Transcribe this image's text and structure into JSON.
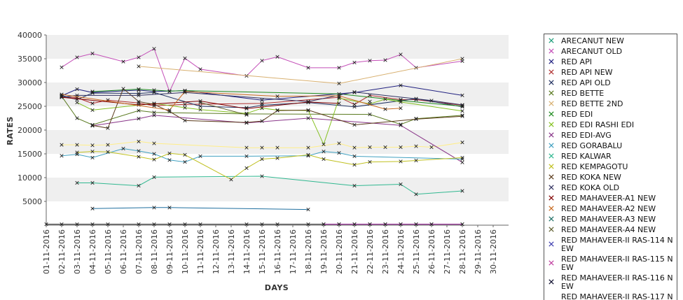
{
  "chart_data": {
    "type": "line",
    "title": "",
    "xlabel": "DAYS",
    "ylabel": "RATES",
    "ylim": [
      0,
      40000
    ],
    "yticks": [
      5000,
      10000,
      15000,
      20000,
      25000,
      30000,
      35000,
      40000
    ],
    "categories": [
      "01-11-2016",
      "02-11-2016",
      "03-11-2016",
      "04-11-2016",
      "05-11-2016",
      "06-11-2016",
      "07-11-2016",
      "08-11-2016",
      "09-11-2016",
      "10-11-2016",
      "11-11-2016",
      "12-11-2016",
      "13-11-2016",
      "14-11-2016",
      "15-11-2016",
      "16-11-2016",
      "17-11-2016",
      "18-11-2016",
      "19-11-2016",
      "20-11-2016",
      "21-11-2016",
      "22-11-2016",
      "23-11-2016",
      "24-11-2016",
      "25-11-2016",
      "26-11-2016",
      "27-11-2016",
      "28-11-2016",
      "29-11-2016",
      "30-11-2016"
    ],
    "grid": "horizontal bands",
    "legend_position": "right",
    "series": [
      {
        "name": "ARECANUT NEW",
        "color": "#1e9e7a",
        "values": [
          null,
          null,
          null,
          null,
          null,
          null,
          null,
          null,
          null,
          null,
          null,
          null,
          null,
          null,
          null,
          null,
          null,
          null,
          null,
          null,
          null,
          null,
          null,
          null,
          null,
          null,
          null,
          null,
          null,
          null
        ]
      },
      {
        "name": "ARECANUT OLD",
        "color": "#c44fb8",
        "values": [
          null,
          33200,
          35300,
          36100,
          null,
          34400,
          35300,
          37100,
          28100,
          35100,
          32800,
          null,
          null,
          31400,
          34600,
          35400,
          null,
          33100,
          null,
          33100,
          34200,
          34600,
          34700,
          35900,
          33100,
          null,
          null,
          34500,
          null,
          null
        ]
      },
      {
        "name": "RED API",
        "color": "#202080",
        "values": [
          null,
          27200,
          28600,
          27900,
          null,
          null,
          28400,
          28100,
          null,
          28300,
          null,
          null,
          null,
          null,
          26300,
          null,
          null,
          null,
          null,
          null,
          27900,
          null,
          null,
          29400,
          null,
          null,
          null,
          27300,
          null,
          null
        ]
      },
      {
        "name": "RED API NEW",
        "color": "#b03030",
        "values": [
          null,
          27000,
          26800,
          25600,
          26300,
          null,
          25700,
          25100,
          null,
          25400,
          null,
          null,
          null,
          null,
          25600,
          null,
          null,
          null,
          null,
          26900,
          25400,
          27300,
          null,
          26400,
          26400,
          null,
          null,
          25200,
          null,
          null
        ]
      },
      {
        "name": "RED API OLD",
        "color": "#203060",
        "values": [
          null,
          27300,
          26400,
          27800,
          null,
          null,
          27700,
          27900,
          null,
          null,
          25000,
          null,
          null,
          24700,
          25200,
          null,
          null,
          25800,
          null,
          null,
          24900,
          null,
          null,
          null,
          26600,
          null,
          null,
          24900,
          null,
          null
        ]
      },
      {
        "name": "RED BETTE",
        "color": "#5a7a20",
        "values": [
          null,
          27100,
          22500,
          21100,
          null,
          null,
          24100,
          23700,
          null,
          null,
          null,
          null,
          null,
          23400,
          null,
          null,
          null,
          null,
          null,
          null,
          null,
          23300,
          null,
          21200,
          22400,
          null,
          null,
          23100,
          null,
          null
        ]
      },
      {
        "name": "RED BETTE 2ND",
        "color": "#d8b070",
        "values": [
          null,
          null,
          null,
          null,
          null,
          null,
          33400,
          null,
          null,
          null,
          null,
          null,
          null,
          null,
          null,
          null,
          null,
          null,
          null,
          29800,
          null,
          null,
          null,
          null,
          null,
          null,
          null,
          35000,
          null,
          null
        ]
      },
      {
        "name": "RED EDI",
        "color": "#1e8a1e",
        "values": [
          null,
          null,
          null,
          28100,
          null,
          null,
          28600,
          28400,
          28200,
          28300,
          null,
          null,
          null,
          null,
          null,
          null,
          null,
          null,
          null,
          27600,
          null,
          null,
          null,
          26200,
          null,
          null,
          null,
          25000,
          null,
          null
        ]
      },
      {
        "name": "RED EDI RASHI EDI",
        "color": "#84c020",
        "values": [
          null,
          null,
          25800,
          24200,
          null,
          null,
          null,
          25600,
          null,
          24700,
          24300,
          null,
          null,
          23500,
          24600,
          24200,
          null,
          24100,
          17000,
          26700,
          null,
          25500,
          26500,
          25900,
          null,
          null,
          null,
          24000,
          null,
          null
        ]
      },
      {
        "name": "RED EDI-AVG",
        "color": "#883488",
        "values": [
          null,
          null,
          null,
          20900,
          null,
          null,
          22400,
          23100,
          null,
          null,
          null,
          null,
          null,
          21500,
          null,
          null,
          null,
          22500,
          null,
          null,
          null,
          null,
          null,
          21000,
          null,
          null,
          null,
          13200,
          null,
          null
        ]
      },
      {
        "name": "RED GORABALU",
        "color": "#40a0c0",
        "values": [
          null,
          14600,
          14900,
          14200,
          null,
          16100,
          15600,
          15000,
          13700,
          13300,
          14500,
          null,
          null,
          14500,
          null,
          null,
          null,
          14600,
          15500,
          15200,
          14500,
          null,
          null,
          null,
          null,
          null,
          null,
          13900,
          null,
          null
        ]
      },
      {
        "name": "RED KALWAR",
        "color": "#30b890",
        "values": [
          null,
          null,
          8900,
          8900,
          null,
          null,
          8300,
          10100,
          null,
          null,
          null,
          null,
          null,
          null,
          10300,
          null,
          null,
          null,
          null,
          null,
          8300,
          null,
          null,
          8600,
          6500,
          null,
          null,
          7200,
          null,
          null
        ]
      },
      {
        "name": "RED KEMPAGOTU",
        "color": "#c0c020",
        "values": [
          null,
          null,
          15300,
          15500,
          15400,
          null,
          14400,
          13800,
          15100,
          14800,
          null,
          null,
          9600,
          12000,
          13900,
          14100,
          null,
          14800,
          13900,
          null,
          12700,
          13300,
          null,
          13400,
          13600,
          null,
          null,
          14200,
          null,
          null
        ]
      },
      {
        "name": "RED KOKA NEW",
        "color": "#5a3a1a",
        "values": [
          null,
          null,
          null,
          21000,
          20400,
          28700,
          26000,
          25400,
          23900,
          22000,
          null,
          null,
          null,
          21600,
          21900,
          24100,
          null,
          24200,
          null,
          null,
          21100,
          null,
          null,
          null,
          22300,
          null,
          null,
          22900,
          null,
          null
        ]
      },
      {
        "name": "RED KOKA OLD",
        "color": "#303060",
        "values": [
          null,
          26900,
          27300,
          null,
          null,
          null,
          27300,
          null,
          null,
          27900,
          null,
          null,
          null,
          null,
          null,
          null,
          null,
          26000,
          null,
          null,
          28000,
          null,
          null,
          null,
          null,
          26200,
          null,
          25300,
          null,
          null
        ]
      },
      {
        "name": "RED MAHAVEER-A1 NEW",
        "color": "#800000",
        "values": [
          null,
          26900,
          null,
          null,
          null,
          null,
          25300,
          null,
          null,
          null,
          26100,
          null,
          null,
          24500,
          null,
          null,
          null,
          25900,
          null,
          25600,
          null,
          null,
          null,
          null,
          null,
          null,
          null,
          null,
          null,
          null
        ]
      },
      {
        "name": "RED MAHAVEER-A2 NEW",
        "color": "#c86a20",
        "values": [
          null,
          27500,
          null,
          null,
          null,
          null,
          null,
          null,
          24200,
          28100,
          null,
          null,
          null,
          null,
          null,
          27100,
          null,
          null,
          null,
          27200,
          null,
          null,
          24400,
          24600,
          null,
          null,
          null,
          null,
          null,
          null
        ]
      },
      {
        "name": "RED MAHAVEER-A3 NEW",
        "color": "#207068",
        "values": [
          null,
          null,
          null,
          null,
          null,
          null,
          null,
          null,
          null,
          null,
          null,
          null,
          null,
          null,
          null,
          null,
          null,
          null,
          null,
          null,
          null,
          26000,
          null,
          null,
          null,
          null,
          null,
          null,
          null,
          null
        ]
      },
      {
        "name": "RED MAHAVEER-A4 NEW",
        "color": "#606030",
        "values": [
          null,
          null,
          null,
          null,
          null,
          null,
          null,
          null,
          null,
          null,
          25800,
          null,
          null,
          23200,
          null,
          null,
          null,
          null,
          null,
          null,
          null,
          null,
          null,
          null,
          null,
          null,
          null,
          null,
          null,
          null
        ]
      },
      {
        "name": "RED MAHAVEER-II RAS-114 NEW",
        "color": "#4040b0",
        "values": [
          null,
          null,
          null,
          null,
          null,
          null,
          null,
          null,
          null,
          null,
          null,
          null,
          null,
          null,
          null,
          null,
          null,
          null,
          null,
          null,
          null,
          null,
          null,
          null,
          null,
          null,
          null,
          null,
          null,
          null
        ]
      },
      {
        "name": "RED MAHAVEER-II RAS-115 NEW",
        "color": "#c040a0",
        "values": [
          null,
          null,
          null,
          null,
          null,
          null,
          null,
          null,
          null,
          null,
          null,
          null,
          null,
          null,
          null,
          null,
          null,
          null,
          null,
          null,
          null,
          null,
          null,
          null,
          null,
          null,
          null,
          null,
          null,
          null
        ]
      },
      {
        "name": "RED MAHAVEER-II RAS-116 NEW",
        "color": "#101030",
        "values": [
          null,
          null,
          null,
          null,
          null,
          null,
          null,
          null,
          null,
          null,
          null,
          null,
          null,
          null,
          null,
          null,
          null,
          null,
          null,
          null,
          null,
          null,
          null,
          null,
          null,
          null,
          null,
          null,
          null,
          null
        ]
      }
    ],
    "extra_lines": [
      {
        "color": "#ffee88",
        "values": [
          null,
          16900,
          16900,
          16800,
          16900,
          null,
          17600,
          17200,
          null,
          null,
          null,
          null,
          null,
          16300,
          16300,
          16300,
          null,
          16300,
          null,
          17200,
          16300,
          16400,
          16400,
          16400,
          16600,
          16400,
          null,
          17400,
          null,
          null
        ]
      },
      {
        "color": "#1f6f9f",
        "values": [
          null,
          null,
          null,
          3500,
          null,
          null,
          null,
          3700,
          3700,
          null,
          null,
          null,
          null,
          null,
          null,
          null,
          null,
          3300,
          null,
          null,
          null,
          null,
          null,
          null,
          null,
          null,
          null,
          null,
          null,
          null
        ]
      },
      {
        "color": "#2a2a2a",
        "values": [
          200,
          200,
          200,
          200,
          200,
          null,
          200,
          200,
          200,
          200,
          200,
          null,
          null,
          200,
          200,
          200,
          null,
          200,
          200,
          200,
          200,
          200,
          200,
          200,
          200,
          200,
          null,
          200,
          null,
          null
        ]
      },
      {
        "color": "#9a1e9a",
        "values": [
          null,
          null,
          null,
          null,
          null,
          null,
          null,
          null,
          null,
          null,
          null,
          null,
          null,
          null,
          null,
          null,
          null,
          null,
          200,
          200,
          200,
          200,
          200,
          200,
          200,
          200,
          null,
          200,
          null,
          null
        ]
      }
    ],
    "legend_partial_last": "RED MAHAVEER-II RAS-117 N"
  }
}
